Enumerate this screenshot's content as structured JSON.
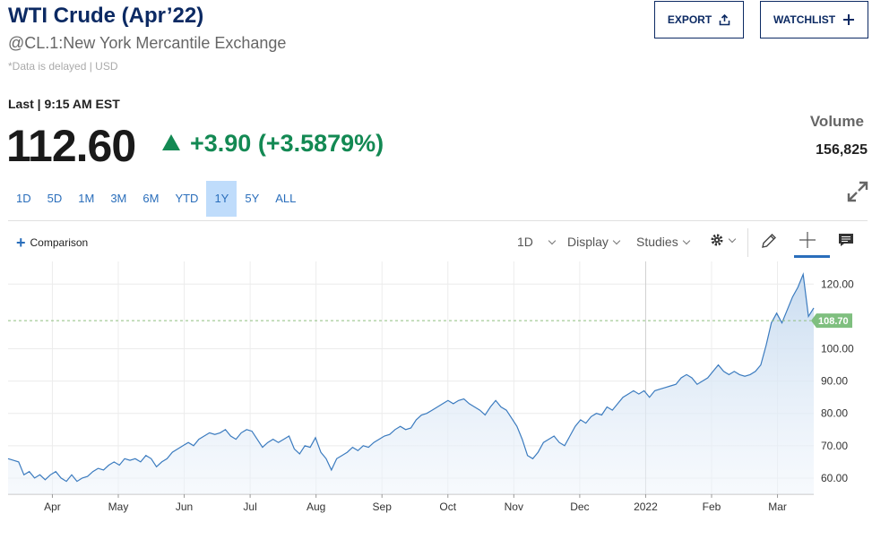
{
  "header": {
    "title": "WTI Crude (Apr’22)",
    "subtitle": "@CL.1:New York Mercantile Exchange",
    "delayed": "*Data is delayed | USD",
    "export_label": "EXPORT",
    "watchlist_label": "WATCHLIST"
  },
  "quote": {
    "last_label": "Last | 9:15 AM EST",
    "price": "112.60",
    "change": "+3.90 (+3.5879%)",
    "volume_label": "Volume",
    "volume_value": "156,825"
  },
  "ranges": [
    "1D",
    "5D",
    "1M",
    "3M",
    "6M",
    "YTD",
    "1Y",
    "5Y",
    "ALL"
  ],
  "active_range": "1Y",
  "toolbar": {
    "comparison_label": "Comparison",
    "interval_label": "1D",
    "display_label": "Display",
    "studies_label": "Studies"
  },
  "colors": {
    "line": "#3b7bbf",
    "fill_top": "#c9dcf0",
    "positive": "#138953",
    "price_tag": "#7fbf7f",
    "brand": "#0c2a63"
  },
  "chart_data": {
    "type": "area",
    "x_ticks": [
      "Apr",
      "May",
      "Jun",
      "Jul",
      "Aug",
      "Sep",
      "Oct",
      "Nov",
      "Dec",
      "2022",
      "Feb",
      "Mar"
    ],
    "y_ticks": [
      "60.00",
      "70.00",
      "80.00",
      "90.00",
      "100.00",
      "120.00"
    ],
    "ylim": [
      55,
      127
    ],
    "reference_value": 108.7,
    "reference_label": "108.70",
    "series": [
      {
        "values": [
          66,
          65.5,
          65,
          61,
          62,
          60,
          61,
          59.5,
          61,
          62,
          60,
          59,
          61,
          59,
          60,
          60.5,
          62,
          63,
          62.5,
          64,
          65,
          64,
          66,
          65.5,
          66,
          65,
          67,
          66,
          63.5,
          65,
          66,
          68,
          69,
          70,
          71,
          70,
          72,
          73,
          74,
          73.5,
          74,
          75,
          73,
          72,
          74,
          75,
          74.5,
          72,
          69.5,
          71,
          72,
          71,
          72,
          73,
          69,
          67.5,
          70,
          69.5,
          72.5,
          68,
          66,
          62.5,
          66,
          67,
          68,
          69.5,
          68.5,
          70,
          69.5,
          71,
          72,
          73,
          73.5,
          75,
          76,
          75,
          75.5,
          78,
          79.5,
          80,
          81,
          82,
          83,
          84,
          83,
          84,
          84.5,
          83,
          82,
          81,
          79.5,
          82,
          84,
          82,
          81,
          78.5,
          76,
          72,
          67,
          66,
          68,
          71,
          72,
          73,
          71,
          70,
          73,
          76,
          78,
          77,
          79,
          80,
          79.5,
          82,
          81,
          83,
          85,
          86,
          87,
          86,
          87,
          85,
          87,
          87.5,
          88,
          88.5,
          89,
          91,
          92,
          91,
          89,
          90,
          91,
          93,
          95,
          93,
          92,
          93,
          92,
          91.5,
          92,
          93,
          95,
          101,
          108,
          111,
          108,
          112,
          116,
          119,
          123,
          110,
          112.6
        ]
      }
    ]
  }
}
